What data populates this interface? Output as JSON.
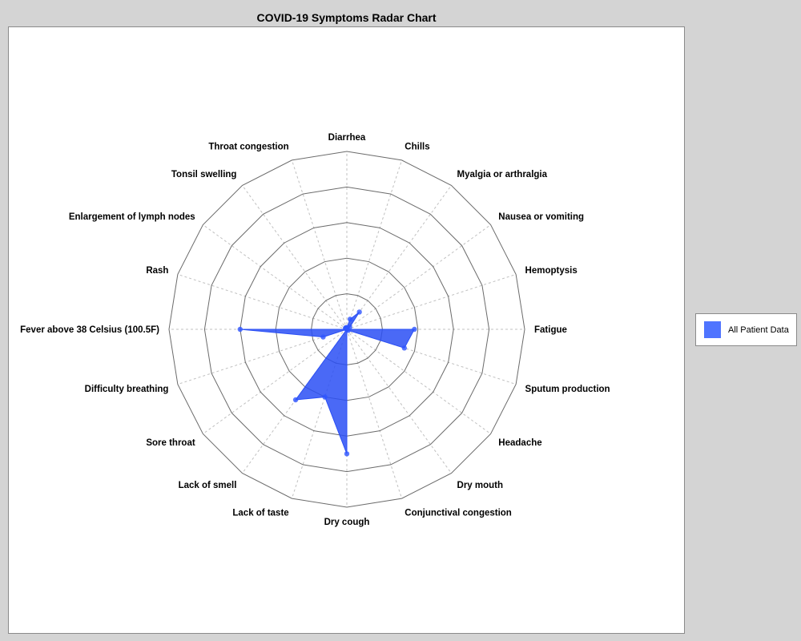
{
  "chart_data": {
    "type": "radar",
    "title": "COVID-19 Symptoms Radar Chart",
    "categories": [
      "Fatigue",
      "Hemoptysis",
      "Nausea or vomiting",
      "Myalgia or arthralgia",
      "Chills",
      "Diarrhea",
      "Throat congestion",
      "Tonsil swelling",
      "Enlargement of lymph nodes",
      "Rash",
      "Fever above 38 Celsius (100.5F)",
      "Difficulty breathing",
      "Sore throat",
      "Lack of smell",
      "Lack of taste",
      "Dry cough",
      "Conjunctival congestion",
      "Dry mouth",
      "Headache",
      "Sputum production"
    ],
    "series": [
      {
        "name": "All Patient Data",
        "values": [
          38,
          0,
          2,
          12,
          6,
          1,
          1,
          1,
          1,
          0,
          60,
          14,
          0,
          49,
          40,
          70,
          0,
          0,
          1,
          34
        ]
      }
    ],
    "rmax": 100,
    "rings": 5,
    "grid": true,
    "legend_position": "right",
    "colors": {
      "series_fill": "#2a4ff5",
      "series_point": "#2e55ff",
      "ring": "#6b6b6b",
      "spoke": "#c0c0c0",
      "legend_swatch": "#4f74ff"
    }
  }
}
